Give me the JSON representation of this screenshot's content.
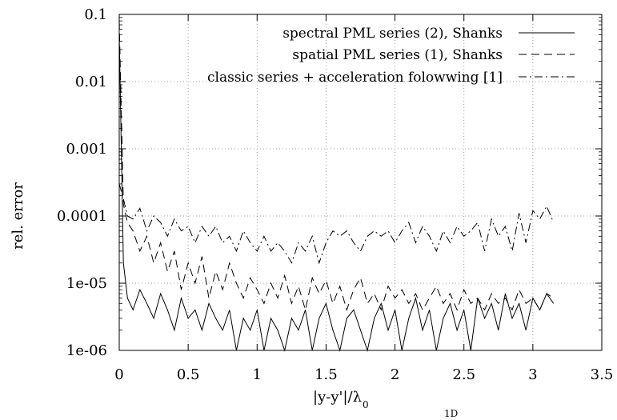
{
  "chart_data": {
    "type": "line",
    "title": "",
    "xlabel_main": "|y-y'|/λ",
    "xlabel_sub": "0",
    "ylabel": "rel. error",
    "xlim": [
      0,
      3.5
    ],
    "ylim": [
      1e-06,
      0.1
    ],
    "yscale": "log",
    "grid": true,
    "legend_position": "top-right",
    "xticks": [
      0,
      0.5,
      1,
      1.5,
      2,
      2.5,
      3,
      3.5
    ],
    "xtick_labels": [
      "0",
      "0.5",
      "1",
      "1.5",
      "2",
      "2.5",
      "3",
      "3.5"
    ],
    "yticks": [
      1e-06,
      1e-05,
      0.0001,
      0.001,
      0.01,
      0.1
    ],
    "ytick_labels": [
      "1e-06",
      "1e-05",
      "0.0001",
      "0.001",
      "0.01",
      "0.1"
    ],
    "bottom_fragment": "1D",
    "series": [
      {
        "name": "spectral PML series (2), Shanks",
        "dash": "solid",
        "x": [
          0.0,
          0.03,
          0.06,
          0.1,
          0.15,
          0.2,
          0.25,
          0.3,
          0.35,
          0.4,
          0.45,
          0.5,
          0.55,
          0.6,
          0.65,
          0.7,
          0.75,
          0.8,
          0.85,
          0.9,
          0.95,
          1.0,
          1.05,
          1.1,
          1.15,
          1.2,
          1.25,
          1.3,
          1.35,
          1.4,
          1.45,
          1.5,
          1.55,
          1.6,
          1.65,
          1.7,
          1.75,
          1.8,
          1.85,
          1.9,
          1.95,
          2.0,
          2.05,
          2.1,
          2.15,
          2.2,
          2.25,
          2.3,
          2.35,
          2.4,
          2.45,
          2.5,
          2.55,
          2.6,
          2.65,
          2.7,
          2.75,
          2.8,
          2.85,
          2.9,
          2.95,
          3.0,
          3.05,
          3.1,
          3.15
        ],
        "y": [
          0.05,
          2e-05,
          6e-06,
          4e-06,
          8e-06,
          5e-06,
          3e-06,
          7e-06,
          4e-06,
          2e-06,
          6e-06,
          3e-06,
          4e-06,
          2e-06,
          5e-06,
          3e-06,
          2e-06,
          4e-06,
          1e-06,
          3e-06,
          2e-06,
          4e-06,
          1e-06,
          3e-06,
          2e-06,
          1e-06,
          3e-06,
          2e-06,
          4e-06,
          1e-06,
          3e-06,
          5e-06,
          2e-06,
          1e-06,
          3e-06,
          4e-06,
          2e-06,
          1e-06,
          3e-06,
          5e-06,
          2e-06,
          4e-06,
          1e-06,
          3e-06,
          6e-06,
          2e-06,
          4e-06,
          1e-06,
          3e-06,
          5e-06,
          2e-06,
          4e-06,
          1e-06,
          6e-06,
          3e-06,
          5e-06,
          2e-06,
          7e-06,
          3e-06,
          5e-06,
          2e-06,
          6e-06,
          4e-06,
          7e-06,
          5e-06
        ]
      },
      {
        "name": "spatial PML series (1), Shanks",
        "dash": "dashed",
        "x": [
          0.0,
          0.03,
          0.06,
          0.1,
          0.15,
          0.2,
          0.25,
          0.3,
          0.35,
          0.4,
          0.45,
          0.5,
          0.55,
          0.6,
          0.65,
          0.7,
          0.75,
          0.8,
          0.85,
          0.9,
          0.95,
          1.0,
          1.05,
          1.1,
          1.15,
          1.2,
          1.25,
          1.3,
          1.35,
          1.4,
          1.45,
          1.5,
          1.55,
          1.6,
          1.65,
          1.7,
          1.75,
          1.8,
          1.85,
          1.9,
          1.95,
          2.0,
          2.05,
          2.1,
          2.15,
          2.2,
          2.25,
          2.3,
          2.35,
          2.4,
          2.45,
          2.5,
          2.55,
          2.6,
          2.65,
          2.7,
          2.75,
          2.8,
          2.85,
          2.9,
          2.95,
          3.0,
          3.05,
          3.1,
          3.15
        ],
        "y": [
          0.08,
          0.00015,
          8e-05,
          6e-05,
          3e-05,
          5e-05,
          2e-05,
          4e-05,
          1.5e-05,
          3e-05,
          8e-06,
          2e-05,
          1e-05,
          2.5e-05,
          6e-06,
          1.5e-05,
          8e-06,
          2e-05,
          1e-05,
          6e-06,
          1.2e-05,
          8e-06,
          5e-06,
          1e-05,
          6e-06,
          1.3e-05,
          5e-06,
          9e-06,
          4e-06,
          1.2e-05,
          7e-06,
          1.1e-05,
          5e-06,
          9e-06,
          4e-06,
          8e-06,
          1.2e-05,
          5e-06,
          7e-06,
          4e-06,
          9e-06,
          6e-06,
          8e-06,
          5e-06,
          7e-06,
          4e-06,
          6e-06,
          9e-06,
          5e-06,
          7e-06,
          4e-06,
          8e-06,
          5e-06,
          6e-06,
          4e-06,
          7e-06,
          5e-06,
          6e-06,
          4e-06,
          8e-06,
          5e-06,
          6e-06,
          4e-06,
          7e-06,
          6e-06
        ]
      },
      {
        "name": "classic series + acceleration folowwing [1]",
        "dash": "dashdot",
        "x": [
          0.0,
          0.03,
          0.06,
          0.1,
          0.15,
          0.2,
          0.25,
          0.3,
          0.35,
          0.4,
          0.45,
          0.5,
          0.55,
          0.6,
          0.65,
          0.7,
          0.75,
          0.8,
          0.85,
          0.9,
          0.95,
          1.0,
          1.05,
          1.1,
          1.15,
          1.2,
          1.25,
          1.3,
          1.35,
          1.4,
          1.45,
          1.5,
          1.55,
          1.6,
          1.65,
          1.7,
          1.75,
          1.8,
          1.85,
          1.9,
          1.95,
          2.0,
          2.05,
          2.1,
          2.15,
          2.2,
          2.25,
          2.3,
          2.35,
          2.4,
          2.45,
          2.5,
          2.55,
          2.6,
          2.65,
          2.7,
          2.75,
          2.8,
          2.85,
          2.9,
          2.95,
          3.0,
          3.05,
          3.1,
          3.15
        ],
        "y": [
          0.0003,
          0.00018,
          0.0001,
          9e-05,
          0.00013,
          6e-05,
          0.0001,
          8e-05,
          5e-05,
          9e-05,
          6e-05,
          7e-05,
          4e-05,
          7e-05,
          5e-05,
          7e-05,
          4e-05,
          5e-05,
          3e-05,
          6e-05,
          4e-05,
          3e-05,
          5e-05,
          3e-05,
          4e-05,
          3e-05,
          2e-05,
          4e-05,
          3e-05,
          5e-05,
          2e-05,
          4e-05,
          6e-05,
          5e-05,
          6e-05,
          4e-05,
          3e-05,
          5e-05,
          6e-05,
          5e-05,
          6e-05,
          4e-05,
          6e-05,
          8e-05,
          4e-05,
          7e-05,
          5e-05,
          3e-05,
          6e-05,
          4e-05,
          7e-05,
          5e-05,
          6e-05,
          8e-05,
          3e-05,
          9e-05,
          5e-05,
          7e-05,
          3e-05,
          0.00011,
          4e-05,
          0.00012,
          9e-05,
          0.00014,
          8e-05
        ]
      }
    ]
  }
}
